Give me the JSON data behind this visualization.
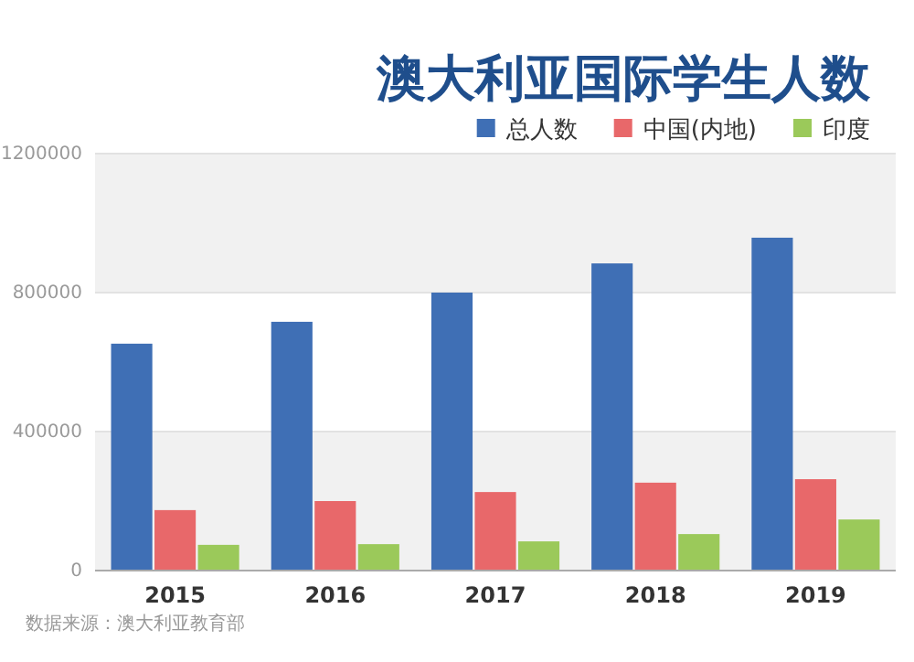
{
  "chart_data": {
    "type": "bar",
    "title": "澳大利亚国际学生人数",
    "categories": [
      "2015",
      "2016",
      "2017",
      "2018",
      "2019"
    ],
    "series": [
      {
        "name": "总人数",
        "color": "#3f6fb5",
        "values": [
          653000,
          716000,
          800000,
          884000,
          958000
        ]
      },
      {
        "name": "中国(内地)",
        "color": "#e8686a",
        "values": [
          174000,
          200000,
          226000,
          253000,
          263000
        ]
      },
      {
        "name": "印度",
        "color": "#9bc95a",
        "values": [
          74000,
          76000,
          84000,
          105000,
          147000
        ]
      }
    ],
    "ylim": [
      0,
      1200000
    ],
    "yticks": [
      0,
      400000,
      800000,
      1200000
    ],
    "grid": true,
    "legend": "top right",
    "annotations": [
      "数据来源：澳大利亚教育部"
    ]
  }
}
